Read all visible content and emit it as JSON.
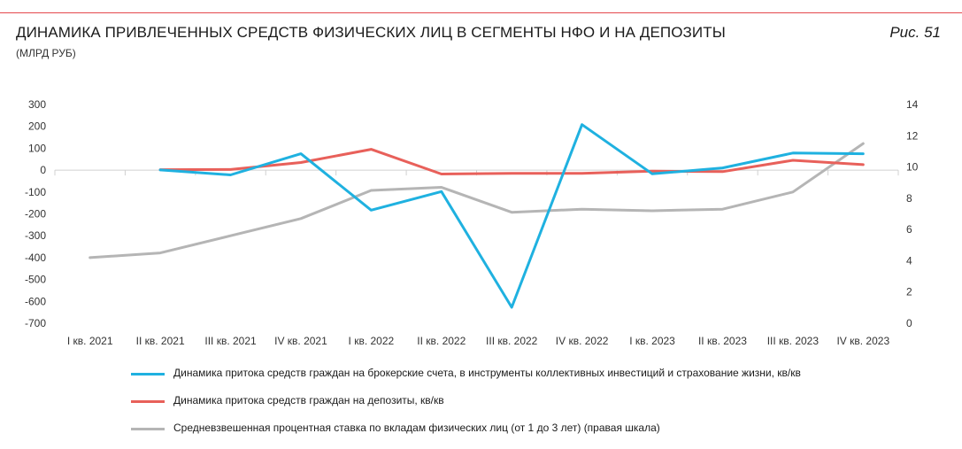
{
  "header": {
    "title": "ДИНАМИКА ПРИВЛЕЧЕННЫХ СРЕДСТВ ФИЗИЧЕСКИХ ЛИЦ В СЕГМЕНТЫ НФО И НА ДЕПОЗИТЫ",
    "subtitle": "(МЛРД РУБ)",
    "figure_label": "Рис. 51"
  },
  "chart_data": {
    "type": "line",
    "categories": [
      "I кв. 2021",
      "II кв. 2021",
      "III кв. 2021",
      "IV кв. 2021",
      "I кв. 2022",
      "II кв. 2022",
      "III кв. 2022",
      "IV кв. 2022",
      "I кв. 2023",
      "II кв. 2023",
      "III кв. 2023",
      "IV кв. 2023"
    ],
    "y_left": {
      "min": -700,
      "max": 300,
      "step": 100,
      "ticks": [
        "300",
        "200",
        "100",
        "0",
        "-100",
        "-200",
        "-300",
        "-400",
        "-500",
        "-600",
        "-700"
      ]
    },
    "y_right": {
      "min": 0,
      "max": 14,
      "step": 2,
      "ticks": [
        "14",
        "12",
        "10",
        "8",
        "6",
        "4",
        "2",
        "0"
      ]
    },
    "grid": false,
    "legend_position": "bottom",
    "series": [
      {
        "name": "Динамика притока средств граждан на брокерские счета, в инструменты коллективных инвестиций и страхование жизни, кв/кв",
        "color": "#1fb1e0",
        "axis": "left",
        "values": [
          null,
          1,
          -22,
          75,
          -183,
          -98,
          -627,
          208,
          -17,
          10,
          78,
          75
        ]
      },
      {
        "name": "Динамика притока средств граждан на депозиты, кв/кв",
        "color": "#e8605a",
        "axis": "left",
        "values": [
          null,
          2,
          3,
          35,
          95,
          -18,
          -15,
          -15,
          -5,
          -7,
          45,
          25
        ]
      },
      {
        "name": "Средневзвешенная процентная ставка по вкладам физических лиц (от 1 до 3 лет) (правая шкала)",
        "color": "#b5b5b5",
        "axis": "right",
        "values": [
          4.2,
          4.5,
          5.6,
          6.7,
          8.5,
          8.7,
          7.1,
          7.3,
          7.2,
          7.3,
          8.4,
          11.5
        ]
      }
    ]
  }
}
